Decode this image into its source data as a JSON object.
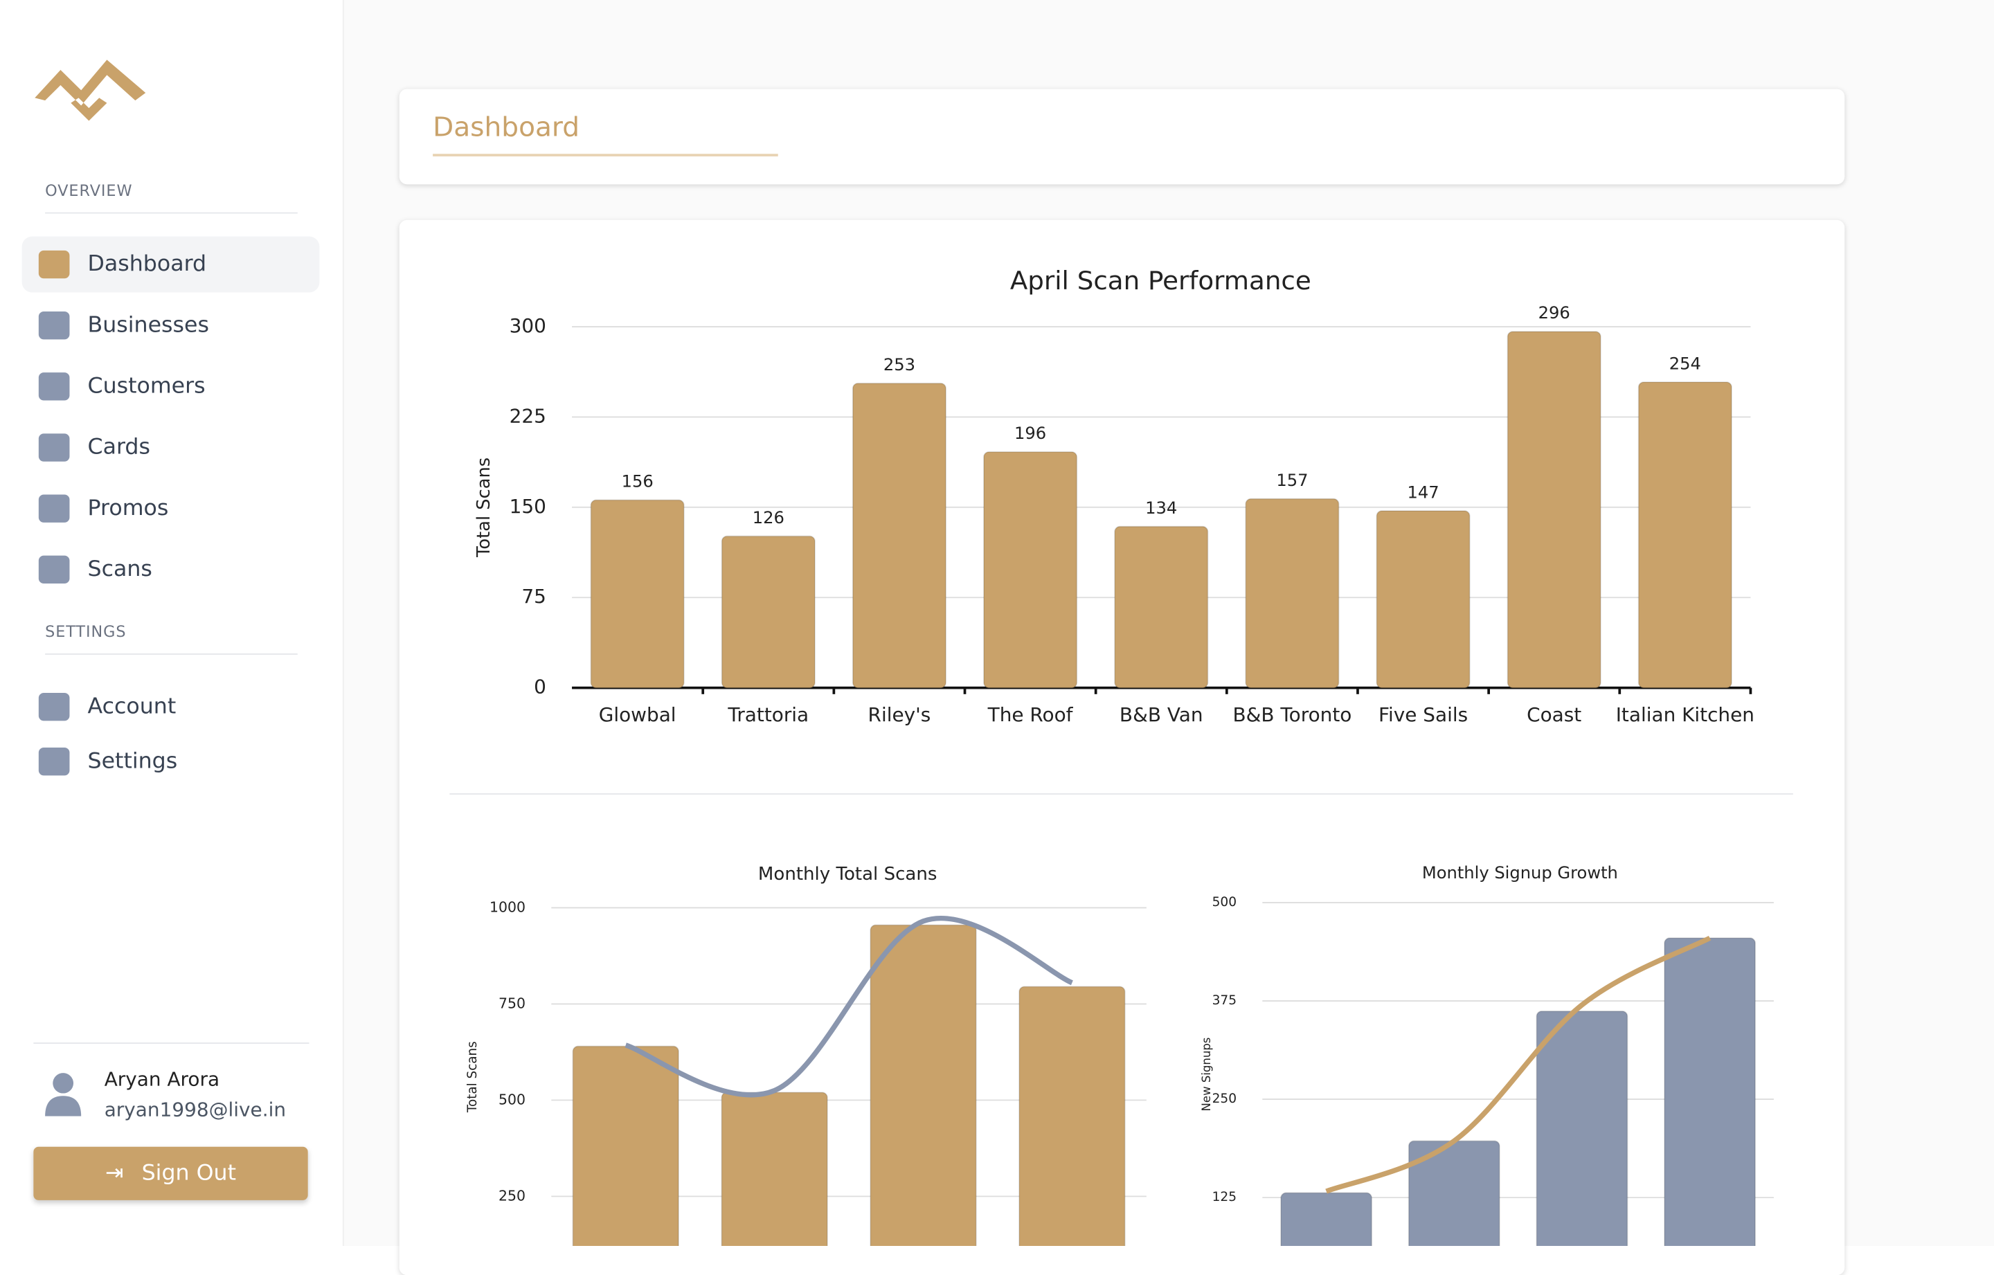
{
  "sidebar": {
    "sections": [
      {
        "title": "OVERVIEW",
        "items": [
          "Dashboard",
          "Businesses",
          "Customers",
          "Cards",
          "Promos",
          "Scans"
        ]
      },
      {
        "title": "SETTINGS",
        "items": [
          "Account",
          "Settings"
        ]
      }
    ],
    "user": {
      "name": "Aryan Arora",
      "email": "aryan1998@live.in"
    },
    "sign_out": "Sign Out"
  },
  "header": {
    "title": "Dashboard"
  },
  "chart_data": [
    {
      "type": "bar",
      "title": "April Scan Performance",
      "y_label": "Total Scans",
      "categories": [
        "Glowbal",
        "Trattoria",
        "Riley's",
        "The Roof",
        "B&B Van",
        "B&B Toronto",
        "Five Sails",
        "Coast",
        "Italian Kitchen"
      ],
      "values": [
        156,
        126,
        253,
        196,
        134,
        157,
        147,
        296,
        254
      ],
      "color": "#c9a26a",
      "ylim": [
        0,
        300
      ],
      "yticks": [
        0,
        75,
        150,
        225,
        300
      ],
      "grid": true
    },
    {
      "type": "combo",
      "title": "Monthly Total Scans",
      "y_label": "Total Scans",
      "series": [
        {
          "type": "bar",
          "color": "#c9a26a",
          "values": [
            640,
            520,
            955,
            795
          ]
        },
        {
          "type": "line",
          "color": "#8a96ae",
          "values": [
            643,
            525,
            965,
            805
          ]
        }
      ],
      "ylim": [
        0,
        1000
      ],
      "yticks": [
        250,
        500,
        750,
        1000
      ],
      "grid": true
    },
    {
      "type": "combo",
      "title": "Monthly Signup Growth",
      "y_label": "New Signups",
      "series": [
        {
          "type": "bar",
          "color": "#8a96ae",
          "values": [
            131,
            197,
            362,
            455
          ]
        },
        {
          "type": "line",
          "color": "#c9a26a",
          "values": [
            133,
            197,
            370,
            455
          ]
        }
      ],
      "ylim": [
        0,
        500
      ],
      "yticks": [
        125,
        250,
        375,
        500
      ],
      "grid": true
    }
  ]
}
